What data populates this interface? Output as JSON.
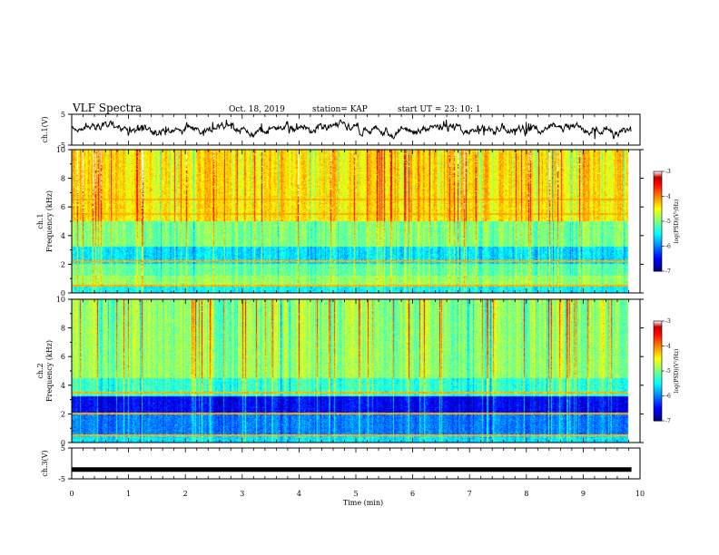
{
  "header": {
    "title": "VLF Spectra",
    "date": "Oct. 18, 2019",
    "station": "station= KAP",
    "start": "start  UT  =   23: 10: 1"
  },
  "chart_data": [
    {
      "id": "ch1-waveform",
      "type": "line",
      "ylabel": "ch.1(V)",
      "ylim": [
        -5,
        5
      ],
      "yticks": [
        "5",
        "-5"
      ],
      "xlim": [
        0,
        10
      ],
      "note": "noisy voltage trace centered near 0 V, amplitude roughly ±2 V"
    },
    {
      "id": "ch1-spectrogram",
      "type": "heatmap",
      "ylabel": "ch.1\nFrequency  (kHz)",
      "ylim": [
        0,
        10
      ],
      "yticks": [
        "0",
        "2",
        "4",
        "6",
        "8",
        "10"
      ],
      "xlim": [
        0,
        9.8
      ],
      "bands_khz": [
        {
          "from": 0,
          "to": 0.6,
          "level": -5.5
        },
        {
          "from": 0.6,
          "to": 1.2,
          "level": -4.9
        },
        {
          "from": 1.2,
          "to": 2.0,
          "level": -5.1
        },
        {
          "from": 2.0,
          "to": 3.2,
          "level": -5.6
        },
        {
          "from": 3.2,
          "to": 5.0,
          "level": -5.0
        },
        {
          "from": 5.0,
          "to": 10.0,
          "level": -4.4
        }
      ],
      "lines_khz": [
        0.5,
        2.2,
        5.5,
        6.5
      ],
      "colorbar": {
        "label": "log(PSD)(V²/Hz)",
        "range": [
          -7,
          -3
        ],
        "ticks": [
          "-3",
          "-4",
          "-5",
          "-6",
          "-7"
        ]
      }
    },
    {
      "id": "ch2-spectrogram",
      "type": "heatmap",
      "ylabel": "ch.2\nFrequency  (kHz)",
      "ylim": [
        0,
        10
      ],
      "yticks": [
        "0",
        "2",
        "4",
        "6",
        "8",
        "10"
      ],
      "xlim": [
        0,
        9.8
      ],
      "bands_khz": [
        {
          "from": 0,
          "to": 0.6,
          "level": -5.6
        },
        {
          "from": 0.6,
          "to": 2.0,
          "level": -6.0
        },
        {
          "from": 2.0,
          "to": 3.2,
          "level": -6.5
        },
        {
          "from": 3.2,
          "to": 4.5,
          "level": -5.3
        },
        {
          "from": 4.5,
          "to": 10.0,
          "level": -4.9
        }
      ],
      "lines_khz": [
        0.5,
        2.0,
        3.5
      ],
      "colorbar": {
        "label": "log(PSD)(V²/Hz)",
        "range": [
          -7,
          -3
        ],
        "ticks": [
          "-3",
          "-4",
          "-5",
          "-6",
          "-7"
        ]
      }
    },
    {
      "id": "ch3-waveform",
      "type": "line",
      "ylabel": "ch.3(V)",
      "ylim": [
        -5,
        5
      ],
      "yticks": [
        "5",
        "-5"
      ],
      "xlim": [
        0,
        10
      ],
      "note": "flat thick trace near -2 V"
    }
  ],
  "xaxis": {
    "label": "Time  (min)",
    "ticks": [
      "0",
      "1",
      "2",
      "3",
      "4",
      "5",
      "6",
      "7",
      "8",
      "9",
      "10"
    ],
    "range": [
      0,
      10
    ]
  }
}
